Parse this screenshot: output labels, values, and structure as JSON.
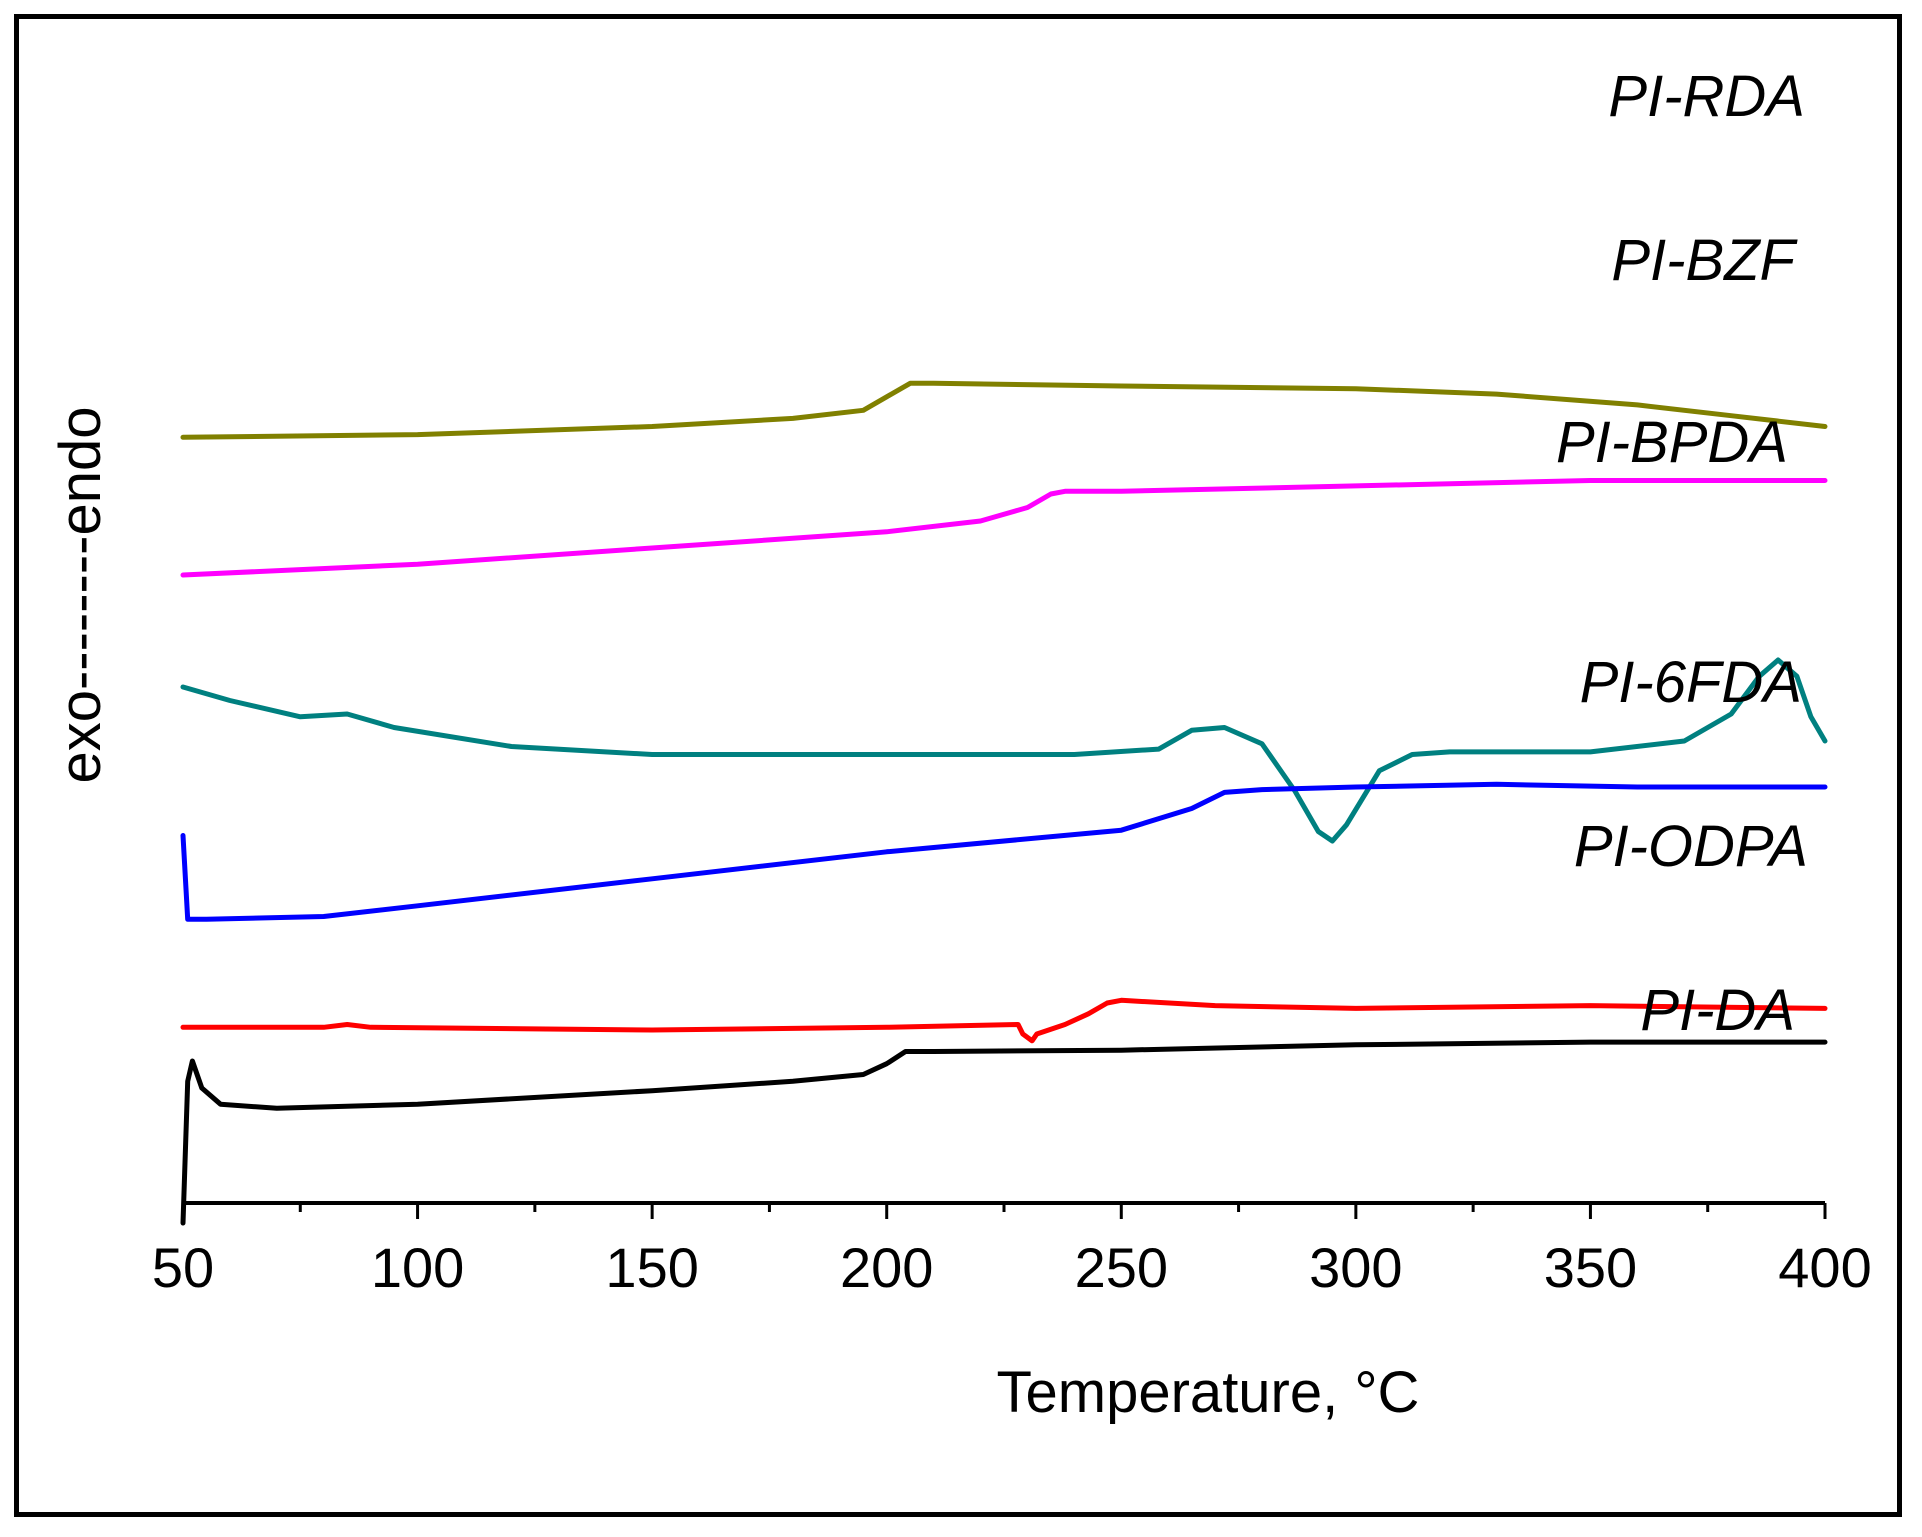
{
  "chart_data": {
    "type": "line",
    "title": "",
    "xlabel": "Temperature, °C",
    "ylabel": "exo--------endo",
    "xlim": [
      50,
      400
    ],
    "xticks": [
      50,
      100,
      150,
      200,
      250,
      300,
      350,
      400
    ],
    "x_minor_step": 25,
    "y_ticks_shown": false,
    "grid": false,
    "series": [
      {
        "name": "PI-RDA",
        "color": "#808000",
        "offset": 5,
        "points": [
          [
            50,
            0.02
          ],
          [
            100,
            0.04
          ],
          [
            150,
            0.1
          ],
          [
            180,
            0.16
          ],
          [
            195,
            0.22
          ],
          [
            200,
            0.32
          ],
          [
            205,
            0.42
          ],
          [
            210,
            0.42
          ],
          [
            250,
            0.4
          ],
          [
            300,
            0.38
          ],
          [
            330,
            0.34
          ],
          [
            360,
            0.26
          ],
          [
            380,
            0.18
          ],
          [
            400,
            0.1
          ]
        ]
      },
      {
        "name": "PI-BZF",
        "color": "#ff00ff",
        "offset": 4,
        "points": [
          [
            50,
            0.0
          ],
          [
            100,
            0.08
          ],
          [
            150,
            0.2
          ],
          [
            200,
            0.32
          ],
          [
            220,
            0.4
          ],
          [
            230,
            0.5
          ],
          [
            235,
            0.6
          ],
          [
            238,
            0.62
          ],
          [
            250,
            0.62
          ],
          [
            300,
            0.66
          ],
          [
            350,
            0.7
          ],
          [
            400,
            0.7
          ]
        ]
      },
      {
        "name": "PI-BPDA",
        "color": "#008080",
        "offset": 2.65,
        "points": [
          [
            50,
            0.52
          ],
          [
            60,
            0.42
          ],
          [
            75,
            0.3
          ],
          [
            85,
            0.32
          ],
          [
            95,
            0.22
          ],
          [
            120,
            0.08
          ],
          [
            150,
            0.02
          ],
          [
            200,
            0.02
          ],
          [
            240,
            0.02
          ],
          [
            258,
            0.06
          ],
          [
            265,
            0.2
          ],
          [
            272,
            0.22
          ],
          [
            280,
            0.1
          ],
          [
            287,
            -0.25
          ],
          [
            292,
            -0.55
          ],
          [
            295,
            -0.62
          ],
          [
            298,
            -0.5
          ],
          [
            305,
            -0.1
          ],
          [
            312,
            0.02
          ],
          [
            320,
            0.04
          ],
          [
            350,
            0.04
          ],
          [
            370,
            0.12
          ],
          [
            380,
            0.32
          ],
          [
            386,
            0.6
          ],
          [
            390,
            0.72
          ],
          [
            394,
            0.6
          ],
          [
            397,
            0.3
          ],
          [
            400,
            0.12
          ]
        ]
      },
      {
        "name": "PI-6FDA",
        "color": "#0000ff",
        "offset": 1.45,
        "points": [
          [
            50,
            0.62
          ],
          [
            51,
            0.0
          ],
          [
            55,
            0.0
          ],
          [
            80,
            0.02
          ],
          [
            100,
            0.1
          ],
          [
            150,
            0.3
          ],
          [
            200,
            0.5
          ],
          [
            250,
            0.66
          ],
          [
            265,
            0.82
          ],
          [
            272,
            0.94
          ],
          [
            280,
            0.96
          ],
          [
            300,
            0.98
          ],
          [
            330,
            1.0
          ],
          [
            360,
            0.98
          ],
          [
            400,
            0.98
          ]
        ]
      },
      {
        "name": "PI-ODPA",
        "color": "#ff0000",
        "offset": 0.65,
        "points": [
          [
            50,
            0.0
          ],
          [
            80,
            0.0
          ],
          [
            85,
            0.02
          ],
          [
            90,
            0.0
          ],
          [
            150,
            -0.02
          ],
          [
            200,
            0.0
          ],
          [
            228,
            0.02
          ],
          [
            229,
            -0.05
          ],
          [
            231,
            -0.1
          ],
          [
            232,
            -0.05
          ],
          [
            238,
            0.02
          ],
          [
            243,
            0.1
          ],
          [
            247,
            0.18
          ],
          [
            250,
            0.2
          ],
          [
            270,
            0.16
          ],
          [
            300,
            0.14
          ],
          [
            350,
            0.16
          ],
          [
            400,
            0.14
          ]
        ]
      },
      {
        "name": "PI-DA",
        "color": "#000000",
        "offset": -0.3,
        "points": [
          [
            50,
            -0.5
          ],
          [
            51,
            0.55
          ],
          [
            52,
            0.7
          ],
          [
            54,
            0.5
          ],
          [
            58,
            0.38
          ],
          [
            70,
            0.35
          ],
          [
            100,
            0.38
          ],
          [
            150,
            0.48
          ],
          [
            180,
            0.55
          ],
          [
            195,
            0.6
          ],
          [
            200,
            0.68
          ],
          [
            204,
            0.77
          ],
          [
            210,
            0.77
          ],
          [
            250,
            0.78
          ],
          [
            300,
            0.82
          ],
          [
            350,
            0.84
          ],
          [
            400,
            0.84
          ]
        ]
      }
    ],
    "labels": [
      "PI-RDA",
      "PI-BZF",
      "PI-BPDA",
      "PI-6FDA",
      "PI-ODPA",
      "PI-DA"
    ]
  }
}
